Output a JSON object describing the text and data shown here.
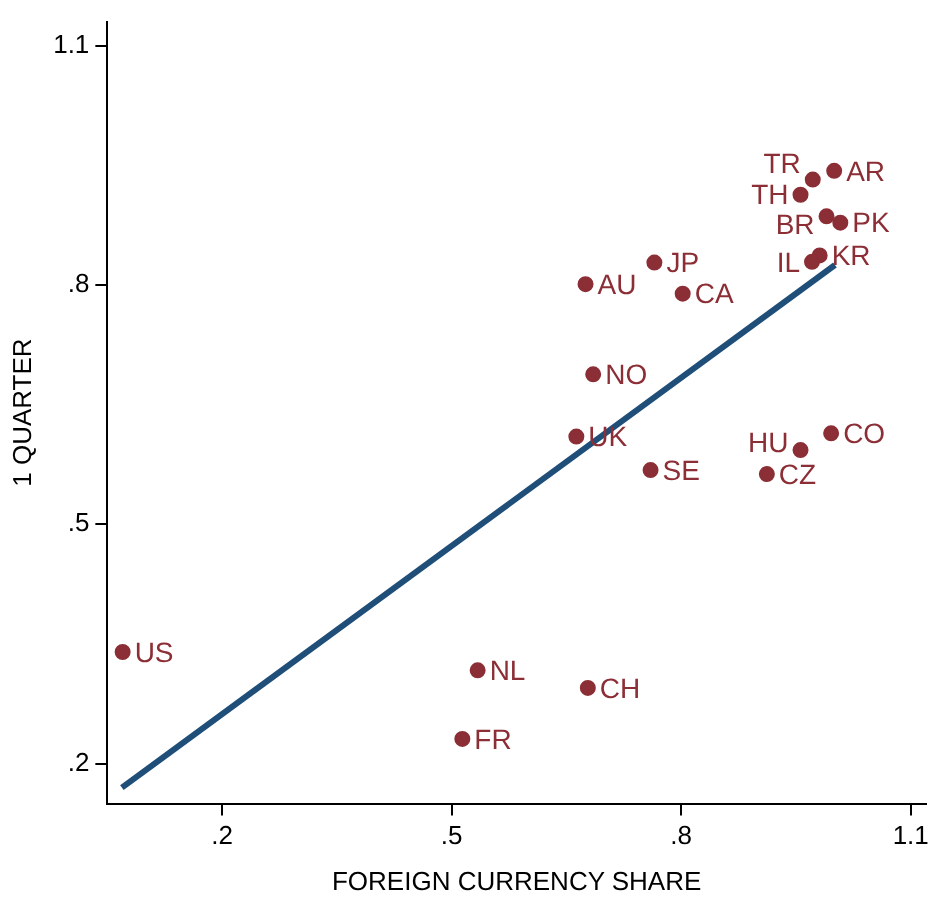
{
  "chart_data": {
    "type": "scatter",
    "xlabel": "FOREIGN CURRENCY SHARE",
    "ylabel": "1 QUARTER",
    "xlim": [
      0.05,
      1.12
    ],
    "ylim": [
      0.15,
      1.13
    ],
    "xticks": [
      {
        "value": 0.2,
        "label": ".2"
      },
      {
        "value": 0.5,
        "label": ".5"
      },
      {
        "value": 0.8,
        "label": ".8"
      },
      {
        "value": 1.1,
        "label": "1.1"
      }
    ],
    "yticks": [
      {
        "value": 0.2,
        "label": ".2"
      },
      {
        "value": 0.5,
        "label": ".5"
      },
      {
        "value": 0.8,
        "label": ".8"
      },
      {
        "value": 1.1,
        "label": "1.1"
      }
    ],
    "grid": false,
    "legend": false,
    "marker": "circle",
    "series": [
      {
        "name": "US",
        "color": "#8b2e35",
        "x": [
          0.07
        ],
        "values": [
          0.34
        ]
      },
      {
        "name": "NL",
        "color": "#8b2e35",
        "x": [
          0.534
        ],
        "values": [
          0.317
        ]
      },
      {
        "name": "CH",
        "color": "#8b2e35",
        "x": [
          0.678
        ],
        "values": [
          0.295
        ]
      },
      {
        "name": "FR",
        "color": "#8b2e35",
        "x": [
          0.514
        ],
        "values": [
          0.231
        ]
      },
      {
        "name": "AU",
        "color": "#8b2e35",
        "x": [
          0.675
        ],
        "values": [
          0.801
        ]
      },
      {
        "name": "JP",
        "color": "#8b2e35",
        "x": [
          0.765
        ],
        "values": [
          0.828
        ]
      },
      {
        "name": "CA",
        "color": "#8b2e35",
        "x": [
          0.802
        ],
        "values": [
          0.789
        ]
      },
      {
        "name": "NO",
        "color": "#8b2e35",
        "x": [
          0.685
        ],
        "values": [
          0.688
        ]
      },
      {
        "name": "UK",
        "color": "#8b2e35",
        "x": [
          0.663
        ],
        "values": [
          0.61
        ]
      },
      {
        "name": "SE",
        "color": "#8b2e35",
        "x": [
          0.76
        ],
        "values": [
          0.568
        ]
      },
      {
        "name": "CZ",
        "color": "#8b2e35",
        "x": [
          0.912
        ],
        "values": [
          0.563
        ]
      },
      {
        "name": "HU",
        "color": "#8b2e35",
        "x": [
          0.956
        ],
        "values": [
          0.593
        ]
      },
      {
        "name": "CO",
        "color": "#8b2e35",
        "x": [
          0.996
        ],
        "values": [
          0.614
        ]
      },
      {
        "name": "IL",
        "color": "#8b2e35",
        "x": [
          0.971
        ],
        "values": [
          0.829
        ]
      },
      {
        "name": "KR",
        "color": "#8b2e35",
        "x": [
          0.981
        ],
        "values": [
          0.837
        ]
      },
      {
        "name": "TH",
        "color": "#8b2e35",
        "x": [
          0.956
        ],
        "values": [
          0.913
        ]
      },
      {
        "name": "TR",
        "color": "#8b2e35",
        "x": [
          0.972
        ],
        "values": [
          0.932
        ]
      },
      {
        "name": "AR",
        "color": "#8b2e35",
        "x": [
          1.0
        ],
        "values": [
          0.943
        ]
      },
      {
        "name": "BR",
        "color": "#8b2e35",
        "x": [
          0.99
        ],
        "values": [
          0.886
        ]
      },
      {
        "name": "PK",
        "color": "#8b2e35",
        "x": [
          1.008
        ],
        "values": [
          0.878
        ]
      },
      {
        "type": "line",
        "color": "#1f4e79",
        "marker": "none",
        "x": [
          0.069,
          1.001
        ],
        "values": [
          0.17,
          0.825
        ]
      }
    ]
  }
}
